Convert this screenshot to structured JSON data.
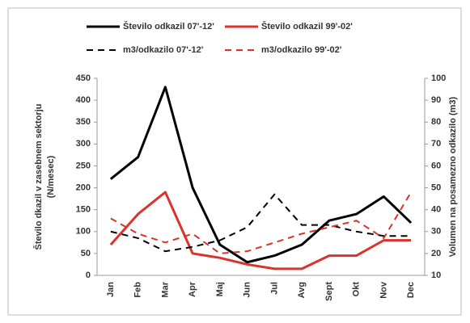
{
  "chart_data": {
    "type": "line",
    "categories": [
      "Jan",
      "Feb",
      "Mar",
      "Apr",
      "Maj",
      "Jun",
      "Jul",
      "Avg",
      "Sept",
      "Okt",
      "Nov",
      "Dec"
    ],
    "series": [
      {
        "name": "Število odkazil 07'-12'",
        "color": "#000000",
        "style": "solid",
        "values": [
          220,
          270,
          430,
          200,
          70,
          30,
          45,
          70,
          125,
          140,
          180,
          120
        ]
      },
      {
        "name": "Število odkazil 99'-02'",
        "color": "#d9342b",
        "style": "solid",
        "values": [
          70,
          140,
          190,
          50,
          40,
          25,
          15,
          15,
          45,
          45,
          80,
          80
        ]
      },
      {
        "name": "m3/odkazilo 07'-12'",
        "color": "#000000",
        "style": "dashed",
        "axis": "y2",
        "values": [
          30,
          27,
          21,
          23,
          26,
          32,
          47,
          33,
          33,
          30,
          28,
          28
        ]
      },
      {
        "name": "m3/odkazilo 99'-02'",
        "color": "#d9342b",
        "style": "dashed",
        "axis": "y2",
        "values": [
          36,
          29,
          25,
          29,
          20,
          21,
          25,
          29,
          32,
          35,
          27,
          48
        ]
      }
    ],
    "ylabel": [
      "Število dkazil v zasebnem sektorju",
      "(N/mesec)"
    ],
    "y2label": "Volumen na posamezno odkazilo (m3)",
    "ylim": [
      0,
      450
    ],
    "yticks": [
      0,
      50,
      100,
      150,
      200,
      250,
      300,
      350,
      400,
      450
    ],
    "y2lim": [
      10,
      100
    ],
    "y2ticks": [
      10,
      20,
      30,
      40,
      50,
      60,
      70,
      80,
      90,
      100
    ],
    "legend": "top",
    "grid": false
  }
}
